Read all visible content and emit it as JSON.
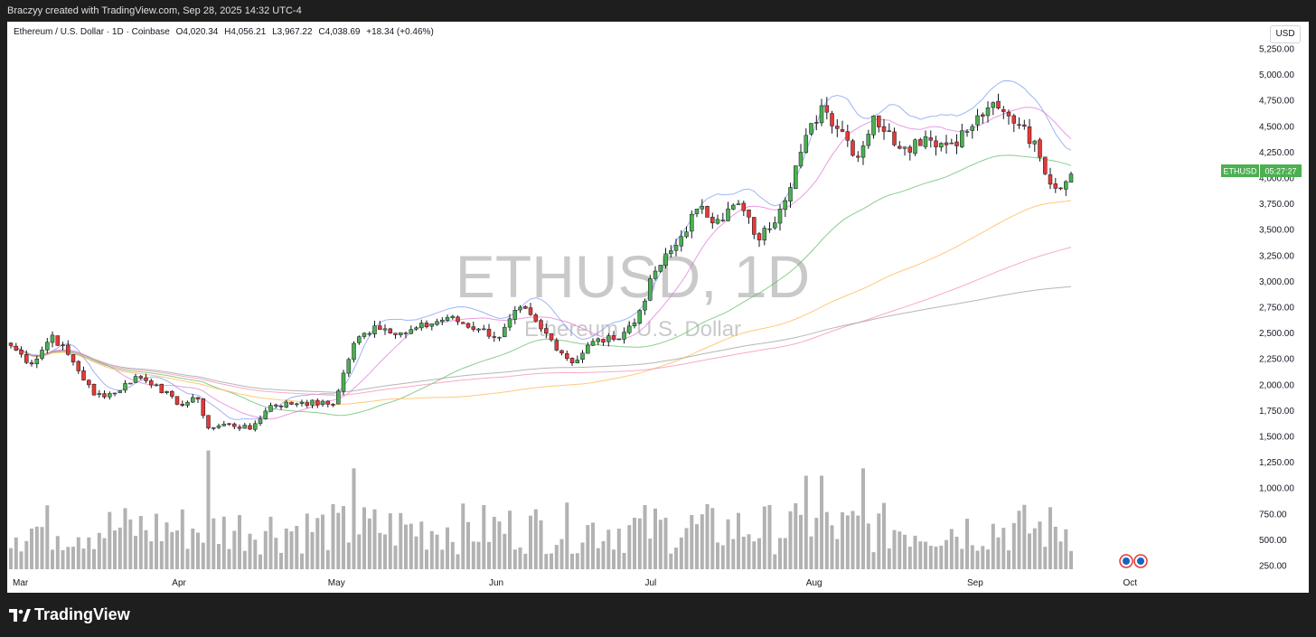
{
  "header": {
    "credit": "Braczyy created with TradingView.com, Sep 28, 2025 14:32 UTC-4"
  },
  "legend": {
    "symbol": "Ethereum / U.S. Dollar · 1D · Coinbase",
    "open": "O4,020.34",
    "high": "H4,056.21",
    "low": "L3,967.22",
    "close": "C4,038.69",
    "change": "+18.34 (+0.46%)"
  },
  "currency_button": "USD",
  "watermark": {
    "main": "ETHUSD, 1D",
    "sub": "Ethereum / U.S. Dollar"
  },
  "price_label": {
    "symbol": "ETHUSD",
    "countdown": "05:27:27"
  },
  "footer": {
    "brand": "TradingView"
  },
  "colors": {
    "up": "#26a69a",
    "up_body": "#4caf50",
    "down": "#e53935",
    "volume": "#b2b2b2",
    "label_bg": "#4caf50"
  },
  "chart_data": {
    "type": "candlestick",
    "ylim": [
      250,
      5250
    ],
    "y_ticks": [
      "5,250.00",
      "5,000.00",
      "4,750.00",
      "4,500.00",
      "4,250.00",
      "4,000.00",
      "3,750.00",
      "3,500.00",
      "3,250.00",
      "3,000.00",
      "2,750.00",
      "2,500.00",
      "2,250.00",
      "2,000.00",
      "1,750.00",
      "1,500.00",
      "1,250.00",
      "1,000.00",
      "750.00",
      "500.00",
      "250.00"
    ],
    "x_ticks": [
      "Mar",
      "Apr",
      "May",
      "Jun",
      "Jul",
      "Aug",
      "Sep",
      "Oct"
    ],
    "anchors": [
      {
        "day": 0,
        "close": 2380
      },
      {
        "day": 4,
        "close": 2200
      },
      {
        "day": 8,
        "close": 2480
      },
      {
        "day": 12,
        "close": 2220
      },
      {
        "day": 16,
        "close": 1900
      },
      {
        "day": 20,
        "close": 1920
      },
      {
        "day": 24,
        "close": 2080
      },
      {
        "day": 28,
        "close": 2000
      },
      {
        "day": 32,
        "close": 1810
      },
      {
        "day": 36,
        "close": 1860
      },
      {
        "day": 38,
        "close": 1580
      },
      {
        "day": 42,
        "close": 1620
      },
      {
        "day": 46,
        "close": 1570
      },
      {
        "day": 50,
        "close": 1800
      },
      {
        "day": 56,
        "close": 1830
      },
      {
        "day": 62,
        "close": 1810
      },
      {
        "day": 66,
        "close": 2400
      },
      {
        "day": 70,
        "close": 2570
      },
      {
        "day": 76,
        "close": 2500
      },
      {
        "day": 84,
        "close": 2650
      },
      {
        "day": 90,
        "close": 2540
      },
      {
        "day": 94,
        "close": 2460
      },
      {
        "day": 98,
        "close": 2750
      },
      {
        "day": 102,
        "close": 2540
      },
      {
        "day": 108,
        "close": 2210
      },
      {
        "day": 112,
        "close": 2420
      },
      {
        "day": 116,
        "close": 2440
      },
      {
        "day": 120,
        "close": 2600
      },
      {
        "day": 124,
        "close": 3100
      },
      {
        "day": 128,
        "close": 3350
      },
      {
        "day": 132,
        "close": 3700
      },
      {
        "day": 136,
        "close": 3600
      },
      {
        "day": 140,
        "close": 3750
      },
      {
        "day": 144,
        "close": 3400
      },
      {
        "day": 148,
        "close": 3700
      },
      {
        "day": 152,
        "close": 4250
      },
      {
        "day": 156,
        "close": 4700
      },
      {
        "day": 160,
        "close": 4450
      },
      {
        "day": 163,
        "close": 4200
      },
      {
        "day": 166,
        "close": 4600
      },
      {
        "day": 168,
        "close": 4450
      },
      {
        "day": 172,
        "close": 4300
      },
      {
        "day": 176,
        "close": 4400
      },
      {
        "day": 180,
        "close": 4320
      },
      {
        "day": 184,
        "close": 4450
      },
      {
        "day": 188,
        "close": 4680
      },
      {
        "day": 192,
        "close": 4600
      },
      {
        "day": 195,
        "close": 4500
      },
      {
        "day": 198,
        "close": 4200
      },
      {
        "day": 201,
        "close": 3900
      },
      {
        "day": 204,
        "close": 4038.69
      }
    ],
    "ma_end_values": {
      "ma9": 4270,
      "ma21": 4380,
      "ma50": 4120,
      "ma100": 3780,
      "ma200_pink": 3330,
      "ma200_gray": 2950
    },
    "volume_max": 1000
  }
}
